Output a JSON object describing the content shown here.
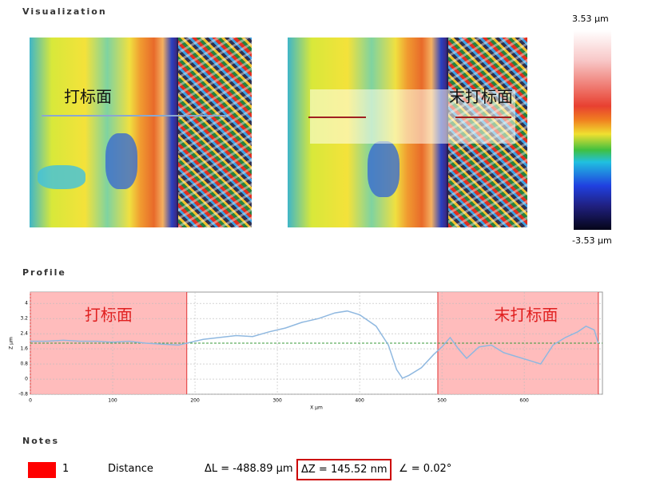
{
  "visualization": {
    "title": "Visualization",
    "left_label": "打标面",
    "right_label": "末打标面",
    "colorbar": {
      "max_label": "3.53 µm",
      "min_label": "-3.53 µm"
    }
  },
  "profile": {
    "title": "Profile",
    "type": "line",
    "x_label": "X µm",
    "y_label": "Z µm",
    "x": [
      0,
      20,
      40,
      60,
      80,
      100,
      120,
      140,
      160,
      180,
      195,
      210,
      230,
      250,
      270,
      290,
      310,
      330,
      350,
      370,
      385,
      400,
      420,
      435,
      445,
      452,
      460,
      475,
      490,
      500,
      510,
      520,
      530,
      545,
      560,
      575,
      590,
      605,
      620,
      635,
      650,
      665,
      675,
      685,
      690
    ],
    "values": [
      2.0,
      2.0,
      2.05,
      2.0,
      2.0,
      1.95,
      2.0,
      1.9,
      1.85,
      1.8,
      1.95,
      2.1,
      2.2,
      2.3,
      2.25,
      2.5,
      2.7,
      3.0,
      3.2,
      3.5,
      3.6,
      3.4,
      2.8,
      1.8,
      0.5,
      0.05,
      0.2,
      0.6,
      1.3,
      1.7,
      2.2,
      1.6,
      1.1,
      1.7,
      1.8,
      1.4,
      1.2,
      1.0,
      0.8,
      1.8,
      2.2,
      2.5,
      2.8,
      2.6,
      1.9
    ],
    "color": "#8fb8e0",
    "xlim": [
      0,
      695
    ],
    "ylim": [
      -0.8,
      4.6
    ],
    "xticks": [
      0,
      100,
      200,
      300,
      400,
      500,
      600
    ],
    "yticks": [
      -0.8,
      0,
      0.8,
      1.6,
      2.4,
      3.2,
      4
    ],
    "reference": 1.9,
    "grid": true,
    "regions": [
      {
        "label": "打标面",
        "from": 0,
        "to": 190
      },
      {
        "label": "末打标面",
        "from": 495,
        "to": 690
      }
    ]
  },
  "notes": {
    "title": "Notes",
    "items": [
      {
        "id": "1",
        "name": "Distance",
        "dl": "ΔL = -488.89 µm",
        "dz": "ΔZ = 145.52 nm",
        "angle": "∠ = 0.02°"
      }
    ]
  }
}
